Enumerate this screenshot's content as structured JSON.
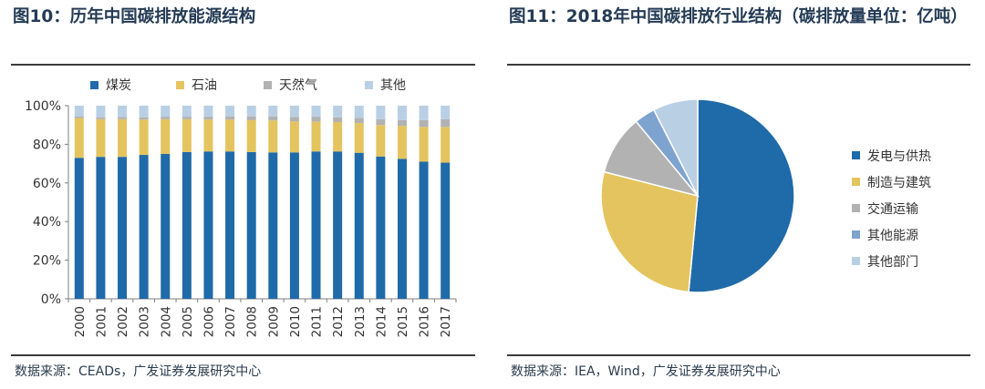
{
  "figures": [
    {
      "title": "图10：历年中国碳排放能源结构",
      "source": "数据来源：CEADs，广发证券发展研究中心"
    },
    {
      "title": "图11：2018年中国碳排放行业结构（碳排放量单位：亿吨）",
      "source": "数据来源：IEA，Wind，广发证券发展研究中心"
    }
  ],
  "colors": {
    "dark_blue": "#1f6aa8",
    "yellow": "#e4c45f",
    "gray": "#b2b2b2",
    "light_blue": "#b9cfe4"
  },
  "chart_data": [
    {
      "type": "bar",
      "stacked": true,
      "legend_position": "top",
      "categories": [
        "2000",
        "2001",
        "2002",
        "2003",
        "2004",
        "2005",
        "2006",
        "2007",
        "2008",
        "2009",
        "2010",
        "2011",
        "2012",
        "2013",
        "2014",
        "2015",
        "2016",
        "2017"
      ],
      "series": [
        {
          "name": "煤炭",
          "color": "#1f6aa8",
          "values": [
            73,
            73.5,
            73.5,
            74.5,
            75,
            76,
            76.3,
            76.3,
            76,
            75.8,
            75.8,
            76.3,
            76.3,
            75.6,
            73.7,
            72.5,
            71,
            70.5
          ]
        },
        {
          "name": "石油",
          "color": "#e4c45f",
          "values": [
            20.5,
            19.5,
            19.5,
            18.3,
            18,
            17,
            16.5,
            16.5,
            16.5,
            16.5,
            16,
            15.5,
            15.2,
            15.4,
            16.3,
            17,
            18,
            18.5
          ]
        },
        {
          "name": "天然气",
          "color": "#b2b2b2",
          "values": [
            1,
            1,
            1.2,
            1.2,
            1.3,
            1.3,
            1.5,
            1.7,
            2,
            2.2,
            2.4,
            2.5,
            2.5,
            2.6,
            3,
            3,
            3.5,
            4
          ]
        },
        {
          "name": "其他",
          "color": "#b9cfe4",
          "values": [
            5.5,
            6,
            5.8,
            6,
            5.7,
            5.7,
            5.7,
            5.5,
            5.5,
            5.5,
            5.8,
            5.7,
            6,
            6.4,
            7,
            7.5,
            7.5,
            7
          ]
        }
      ],
      "yticks": [
        "0%",
        "20%",
        "40%",
        "60%",
        "80%",
        "100%"
      ],
      "ylim": [
        0,
        100
      ],
      "grid": false
    },
    {
      "type": "pie",
      "legend_position": "right",
      "slices": [
        {
          "label": "发电与供热",
          "value": 51.5,
          "color": "#1f6aa8"
        },
        {
          "label": "制造与建筑",
          "value": 27.5,
          "color": "#e4c45f"
        },
        {
          "label": "交通运输",
          "value": 10,
          "color": "#b2b2b2"
        },
        {
          "label": "其他能源",
          "value": 3.5,
          "color": "#7fa3cf"
        },
        {
          "label": "其他部门",
          "value": 7.5,
          "color": "#b9cfe4"
        }
      ]
    }
  ]
}
